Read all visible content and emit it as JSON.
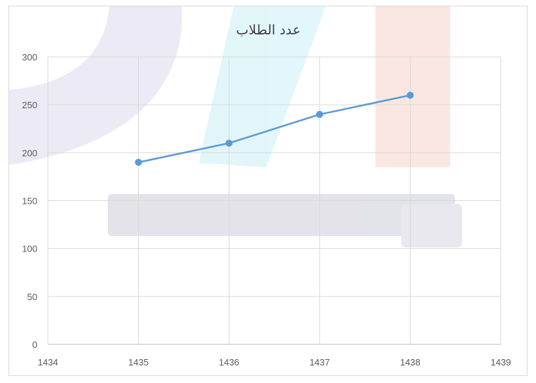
{
  "chart_data": {
    "type": "line",
    "title": "عدد الطلاب",
    "xlabel": "",
    "ylabel": "",
    "xlim": [
      1434,
      1439
    ],
    "ylim": [
      0,
      300
    ],
    "x_ticks": [
      1434,
      1435,
      1436,
      1437,
      1438,
      1439
    ],
    "y_ticks": [
      0,
      50,
      100,
      150,
      200,
      250,
      300
    ],
    "grid": true,
    "legend": "none",
    "series": [
      {
        "color": "#5b9bd5",
        "x": [
          1435,
          1436,
          1437,
          1438
        ],
        "y": [
          190,
          210,
          240,
          260
        ]
      }
    ]
  },
  "colors": {
    "line": "#5b9bd5",
    "grid": "#d9d9d9",
    "text": "#595959"
  }
}
